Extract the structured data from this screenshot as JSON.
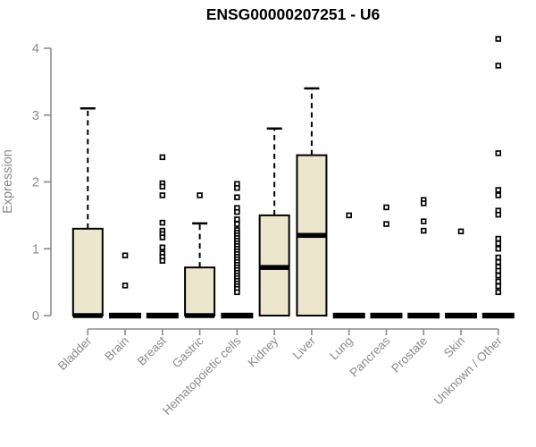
{
  "chart_data": {
    "type": "boxplot",
    "title": "ENSG00000207251 - U6",
    "xlabel": "",
    "ylabel": "Expression",
    "ylim": [
      0,
      4
    ],
    "yticks": [
      0,
      1,
      2,
      3,
      4
    ],
    "grid": false,
    "legend": false,
    "colors": {
      "box_fill": "#ECE6CD",
      "box_stroke": "#000000",
      "median": "#000000",
      "whisker": "#000000",
      "outlier_fill": "#ffffff",
      "outlier_stroke": "#000000",
      "axis": "#8A8A8A",
      "tick_label": "#8A8A8A",
      "title": "#000000",
      "background": "#FFFFFF"
    },
    "categories": [
      "Bladder",
      "Brain",
      "Breast",
      "Gastric",
      "Hematopoietic cells",
      "Kidney",
      "Liver",
      "Lung",
      "Pancreas",
      "Prostate",
      "Skin",
      "Unknown / Other"
    ],
    "series": [
      {
        "name": "Bladder",
        "q1": 0,
        "median": 0,
        "q3": 1.3,
        "whisker_low": 0,
        "whisker_high": 3.1,
        "outliers": []
      },
      {
        "name": "Brain",
        "q1": 0,
        "median": 0,
        "q3": 0,
        "whisker_low": 0,
        "whisker_high": 0,
        "outliers": [
          0.9,
          0.45
        ]
      },
      {
        "name": "Breast",
        "q1": 0,
        "median": 0,
        "q3": 0,
        "whisker_low": 0,
        "whisker_high": 0,
        "outliers": [
          2.37,
          1.98,
          1.93,
          1.8,
          1.39,
          1.27,
          1.22,
          1.17,
          1.02,
          0.93,
          0.88,
          0.82
        ]
      },
      {
        "name": "Gastric",
        "q1": 0,
        "median": 0,
        "q3": 0.72,
        "whisker_low": 0,
        "whisker_high": 1.38,
        "outliers": [
          1.8
        ]
      },
      {
        "name": "Hematopoietic cells",
        "q1": 0,
        "median": 0,
        "q3": 0,
        "whisker_low": 0,
        "whisker_high": 0,
        "outliers": [
          1.97,
          1.91,
          1.77,
          1.61,
          1.55,
          1.44,
          1.37,
          1.28,
          1.24,
          1.2,
          1.16,
          1.12,
          1.08,
          1.04,
          1.0,
          0.96,
          0.92,
          0.88,
          0.84,
          0.8,
          0.76,
          0.72,
          0.68,
          0.64,
          0.6,
          0.56,
          0.52,
          0.48,
          0.44,
          0.4,
          0.35
        ]
      },
      {
        "name": "Kidney",
        "q1": 0,
        "median": 0.72,
        "q3": 1.5,
        "whisker_low": 0,
        "whisker_high": 2.8,
        "outliers": []
      },
      {
        "name": "Liver",
        "q1": 0,
        "median": 1.2,
        "q3": 2.4,
        "whisker_low": 0,
        "whisker_high": 3.4,
        "outliers": []
      },
      {
        "name": "Lung",
        "q1": 0,
        "median": 0,
        "q3": 0,
        "whisker_low": 0,
        "whisker_high": 0,
        "outliers": [
          1.5
        ]
      },
      {
        "name": "Pancreas",
        "q1": 0,
        "median": 0,
        "q3": 0,
        "whisker_low": 0,
        "whisker_high": 0,
        "outliers": [
          1.62,
          1.37
        ]
      },
      {
        "name": "Prostate",
        "q1": 0,
        "median": 0,
        "q3": 0,
        "whisker_low": 0,
        "whisker_high": 0,
        "outliers": [
          1.73,
          1.68,
          1.41,
          1.27
        ]
      },
      {
        "name": "Skin",
        "q1": 0,
        "median": 0,
        "q3": 0,
        "whisker_low": 0,
        "whisker_high": 0,
        "outliers": [
          1.26
        ]
      },
      {
        "name": "Unknown / Other",
        "q1": 0,
        "median": 0,
        "q3": 0,
        "whisker_low": 0,
        "whisker_high": 0,
        "outliers": [
          4.14,
          3.74,
          2.43,
          1.88,
          1.8,
          1.57,
          1.51,
          1.15,
          1.08,
          1.0,
          0.87,
          0.8,
          0.73,
          0.67,
          0.6,
          0.51,
          0.44,
          0.35
        ]
      }
    ]
  }
}
